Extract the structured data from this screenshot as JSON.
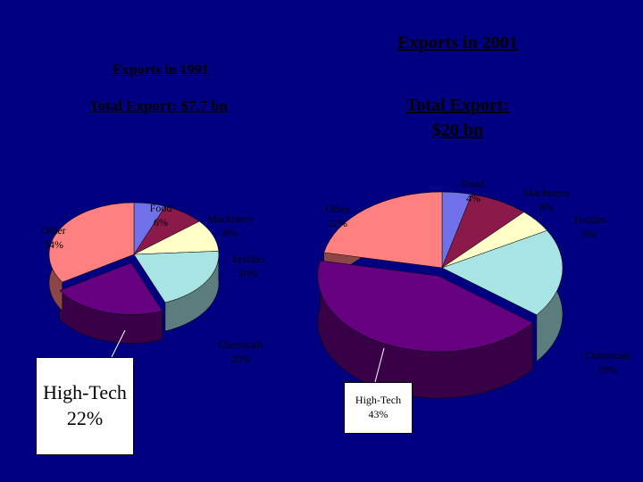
{
  "chart_data": [
    {
      "type": "pie",
      "title": "Exports in 1991",
      "subtitle": "Total Export: $7.7 bn",
      "categories": [
        "Food",
        "Machinery",
        "Textiles",
        "Chemicals",
        "High-Tech",
        "Other"
      ],
      "values": [
        6,
        8,
        10,
        20,
        22,
        34
      ],
      "value_labels": [
        "6%",
        "8%",
        "10%",
        "20%",
        "22%",
        "34%"
      ],
      "colors": [
        "#7070e8",
        "#8b1a4b",
        "#ffffc8",
        "#a8e4e4",
        "#660080",
        "#ff8080"
      ]
    },
    {
      "type": "pie",
      "title": "Exports in 2001",
      "subtitle": "Total Export: $20 bn",
      "categories": [
        "Food",
        "Machinery",
        "Textiles",
        "Chemicals",
        "High-Tech",
        "Other"
      ],
      "values": [
        4,
        8,
        5,
        19,
        43,
        22
      ],
      "value_labels": [
        "4%",
        "8%",
        "5%",
        "19%",
        "43%",
        "22%"
      ],
      "colors": [
        "#7070e8",
        "#8b1a4b",
        "#ffffc8",
        "#a8e4e4",
        "#660080",
        "#ff8080"
      ]
    }
  ]
}
